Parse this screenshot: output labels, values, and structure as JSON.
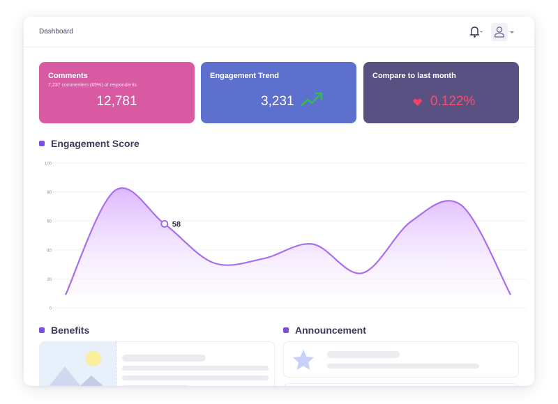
{
  "header": {
    "breadcrumb": "Dashboard"
  },
  "icons": {
    "bell": "bell-icon",
    "user": "user-icon",
    "trend": "trend-up-icon",
    "heart": "heart-icon"
  },
  "cards": [
    {
      "title": "Comments",
      "subtitle": "7,237 commenters (65%) of respondents",
      "value": "12,781",
      "color": "#d75aa2"
    },
    {
      "title": "Engagement Trend",
      "value": "3,231",
      "color": "#5e70cd"
    },
    {
      "title": "Compare to last month",
      "value": "0.122%",
      "color": "#5a5183"
    }
  ],
  "sections": {
    "engagement": "Engagement Score",
    "benefits": "Benefits",
    "announcement": "Announcement"
  },
  "chart_data": {
    "type": "area",
    "x": [
      0,
      1,
      2,
      3,
      4,
      5,
      6,
      7,
      8,
      9
    ],
    "values": [
      9,
      81,
      58,
      31,
      34,
      44,
      24,
      60,
      71,
      9
    ],
    "ylim": [
      0,
      100
    ],
    "yticks": [
      0,
      20,
      40,
      60,
      80,
      100
    ],
    "grid": true,
    "highlight": {
      "index": 2,
      "label": "58"
    },
    "line_color": "#a86ef0",
    "fill_color": "#e6c6ff"
  }
}
